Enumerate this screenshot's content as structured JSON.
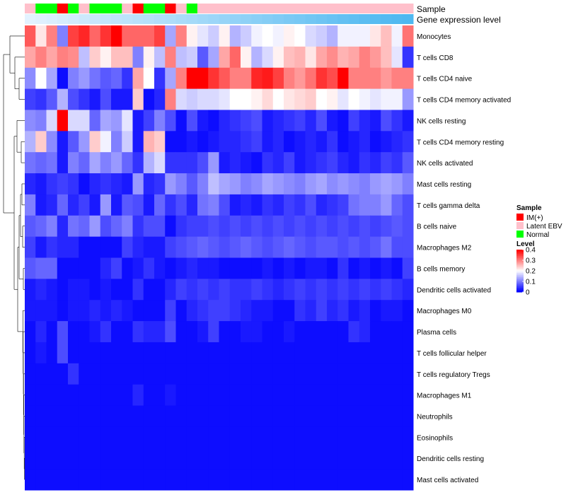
{
  "chart_data": {
    "type": "heatmap",
    "title": "",
    "annotation_tracks": [
      "Sample",
      "Gene expression level"
    ],
    "rows": [
      "Monocytes",
      "T cells CD8",
      "T cells CD4 naive",
      "T cells CD4 memory activated",
      "NK cells resting",
      "T cells CD4 memory resting",
      "NK cells activated",
      "Mast cells resting",
      "T cells gamma delta",
      "B cells naive",
      "Macrophages M2",
      "B cells memory",
      "Dendritic cells activated",
      "Macrophages M0",
      "Plasma cells",
      "T cells follicular helper",
      "T cells regulatory  Tregs",
      "Macrophages M1",
      "Neutrophils",
      "Eosinophils",
      "Dendritic cells resting",
      "Mast cells activated"
    ],
    "samples": [
      "Latent EBV",
      "Normal",
      "Normal",
      "IM(+)",
      "Normal",
      "Latent EBV",
      "Normal",
      "Normal",
      "Normal",
      "Latent EBV",
      "IM(+)",
      "Normal",
      "Normal",
      "IM(+)",
      "Latent EBV",
      "Normal",
      "Latent EBV",
      "Latent EBV",
      "Latent EBV",
      "Latent EBV",
      "Latent EBV",
      "Latent EBV",
      "Latent EBV",
      "Latent EBV",
      "Latent EBV",
      "Latent EBV",
      "Latent EBV",
      "Latent EBV",
      "Latent EBV",
      "Latent EBV",
      "Latent EBV",
      "Latent EBV",
      "Latent EBV",
      "Latent EBV",
      "Latent EBV",
      "Latent EBV"
    ],
    "gene_expression_level": [
      0.03,
      0.06,
      0.09,
      0.12,
      0.15,
      0.18,
      0.21,
      0.24,
      0.26,
      0.28,
      0.31,
      0.33,
      0.36,
      0.38,
      0.41,
      0.44,
      0.47,
      0.5,
      0.53,
      0.56,
      0.59,
      0.62,
      0.65,
      0.68,
      0.71,
      0.74,
      0.77,
      0.8,
      0.83,
      0.86,
      0.89,
      0.92,
      0.94,
      0.96,
      0.98,
      1.0
    ],
    "values": [
      [
        0.33,
        0.22,
        0.3,
        0.1,
        0.35,
        0.37,
        0.32,
        0.36,
        0.4,
        0.32,
        0.32,
        0.32,
        0.35,
        0.13,
        0.3,
        0.21,
        0.18,
        0.16,
        0.21,
        0.14,
        0.16,
        0.19,
        0.2,
        0.19,
        0.21,
        0.2,
        0.17,
        0.16,
        0.14,
        0.19,
        0.19,
        0.19,
        0.22,
        0.25,
        0.19,
        0.31
      ],
      [
        0.27,
        0.3,
        0.27,
        0.3,
        0.29,
        0.15,
        0.24,
        0.21,
        0.25,
        0.25,
        0.1,
        0.21,
        0.15,
        0.3,
        0.15,
        0.16,
        0.07,
        0.13,
        0.27,
        0.32,
        0.21,
        0.14,
        0.17,
        0.21,
        0.25,
        0.26,
        0.22,
        0.27,
        0.29,
        0.26,
        0.27,
        0.3,
        0.28,
        0.25,
        0.18,
        0.04
      ],
      [
        0.11,
        0.2,
        0.13,
        0.01,
        0.1,
        0.12,
        0.09,
        0.07,
        0.08,
        0.04,
        0.27,
        0.2,
        0.04,
        0.13,
        0.3,
        0.4,
        0.4,
        0.36,
        0.33,
        0.3,
        0.3,
        0.37,
        0.38,
        0.35,
        0.3,
        0.28,
        0.31,
        0.36,
        0.34,
        0.4,
        0.3,
        0.3,
        0.3,
        0.28,
        0.3,
        0.3
      ],
      [
        0.05,
        0.04,
        0.07,
        0.14,
        0.06,
        0.04,
        0.02,
        0.06,
        0.02,
        0.02,
        0.24,
        0.01,
        0.03,
        0.3,
        0.17,
        0.16,
        0.17,
        0.17,
        0.18,
        0.2,
        0.2,
        0.21,
        0.23,
        0.2,
        0.22,
        0.23,
        0.24,
        0.2,
        0.21,
        0.18,
        0.2,
        0.19,
        0.18,
        0.19,
        0.19,
        0.12
      ],
      [
        0.11,
        0.1,
        0.17,
        0.42,
        0.17,
        0.17,
        0.08,
        0.13,
        0.12,
        0.18,
        0.02,
        0.05,
        0.1,
        0.06,
        0.01,
        0.06,
        0.02,
        0.01,
        0.03,
        0.04,
        0.05,
        0.06,
        0.02,
        0.03,
        0.04,
        0.05,
        0.03,
        0.06,
        0.02,
        0.01,
        0.05,
        0.03,
        0.02,
        0.06,
        0.04,
        0.02
      ],
      [
        0.14,
        0.24,
        0.11,
        0.02,
        0.07,
        0.12,
        0.24,
        0.19,
        0.1,
        0.16,
        0.02,
        0.26,
        0.24,
        0.01,
        0.01,
        0.02,
        0.01,
        0.02,
        0.03,
        0.03,
        0.04,
        0.05,
        0.02,
        0.03,
        0.01,
        0.02,
        0.03,
        0.02,
        0.04,
        0.01,
        0.02,
        0.03,
        0.01,
        0.02,
        0.03,
        0.04
      ],
      [
        0.09,
        0.08,
        0.09,
        0.02,
        0.1,
        0.08,
        0.13,
        0.1,
        0.12,
        0.08,
        0.04,
        0.14,
        0.17,
        0.04,
        0.04,
        0.04,
        0.06,
        0.12,
        0.02,
        0.03,
        0.02,
        0.01,
        0.04,
        0.03,
        0.05,
        0.02,
        0.03,
        0.04,
        0.05,
        0.03,
        0.02,
        0.04,
        0.03,
        0.05,
        0.04,
        0.07
      ],
      [
        0.03,
        0.02,
        0.04,
        0.05,
        0.04,
        0.01,
        0.03,
        0.04,
        0.03,
        0.02,
        0.12,
        0.03,
        0.04,
        0.12,
        0.1,
        0.07,
        0.1,
        0.15,
        0.13,
        0.12,
        0.1,
        0.11,
        0.13,
        0.12,
        0.11,
        0.1,
        0.12,
        0.13,
        0.11,
        0.12,
        0.11,
        0.1,
        0.12,
        0.13,
        0.12,
        0.1
      ],
      [
        0.1,
        0.02,
        0.03,
        0.08,
        0.03,
        0.05,
        0.02,
        0.12,
        0.02,
        0.07,
        0.06,
        0.02,
        0.08,
        0.04,
        0.06,
        0.03,
        0.09,
        0.1,
        0.06,
        0.02,
        0.03,
        0.02,
        0.04,
        0.03,
        0.05,
        0.04,
        0.06,
        0.03,
        0.04,
        0.05,
        0.09,
        0.1,
        0.1,
        0.12,
        0.08,
        0.06
      ],
      [
        0.07,
        0.08,
        0.1,
        0.03,
        0.09,
        0.08,
        0.12,
        0.06,
        0.08,
        0.1,
        0.04,
        0.06,
        0.06,
        0.01,
        0.04,
        0.05,
        0.05,
        0.06,
        0.05,
        0.06,
        0.05,
        0.06,
        0.05,
        0.06,
        0.05,
        0.06,
        0.05,
        0.06,
        0.05,
        0.06,
        0.05,
        0.06,
        0.05,
        0.06,
        0.07,
        0.06
      ],
      [
        0.05,
        0.02,
        0.04,
        0.03,
        0.03,
        0.01,
        0.01,
        0.01,
        0.01,
        0.05,
        0.03,
        0.02,
        0.02,
        0.05,
        0.06,
        0.07,
        0.08,
        0.07,
        0.06,
        0.07,
        0.08,
        0.07,
        0.06,
        0.07,
        0.08,
        0.07,
        0.06,
        0.07,
        0.07,
        0.06,
        0.07,
        0.06,
        0.07,
        0.09,
        0.06,
        0.06
      ],
      [
        0.07,
        0.08,
        0.08,
        0.01,
        0.01,
        0.01,
        0.01,
        0.03,
        0.05,
        0.01,
        0.02,
        0.04,
        0.02,
        0.01,
        0.02,
        0.03,
        0.02,
        0.02,
        0.01,
        0.01,
        0.01,
        0.01,
        0.02,
        0.01,
        0.02,
        0.01,
        0.02,
        0.02,
        0.01,
        0.04,
        0.01,
        0.02,
        0.01,
        0.02,
        0.01,
        0.05
      ],
      [
        0.02,
        0.03,
        0.02,
        0.01,
        0.02,
        0.02,
        0.01,
        0.02,
        0.01,
        0.01,
        0.04,
        0.01,
        0.01,
        0.03,
        0.05,
        0.04,
        0.05,
        0.04,
        0.05,
        0.04,
        0.04,
        0.05,
        0.04,
        0.03,
        0.04,
        0.05,
        0.04,
        0.05,
        0.04,
        0.05,
        0.04,
        0.05,
        0.04,
        0.05,
        0.04,
        0.03
      ],
      [
        0.02,
        0.02,
        0.02,
        0.01,
        0.02,
        0.02,
        0.03,
        0.02,
        0.03,
        0.02,
        0.01,
        0.01,
        0.01,
        0.05,
        0.01,
        0.03,
        0.04,
        0.05,
        0.05,
        0.04,
        0.03,
        0.02,
        0.02,
        0.01,
        0.01,
        0.04,
        0.03,
        0.05,
        0.03,
        0.04,
        0.02,
        0.03,
        0.01,
        0.02,
        0.02,
        0.01
      ],
      [
        0.01,
        0.03,
        0.01,
        0.06,
        0.01,
        0.01,
        0.02,
        0.04,
        0.01,
        0.01,
        0.04,
        0.03,
        0.03,
        0.06,
        0.01,
        0.01,
        0.02,
        0.05,
        0.01,
        0.01,
        0.02,
        0.02,
        0.01,
        0.01,
        0.02,
        0.01,
        0.01,
        0.01,
        0.01,
        0.01,
        0.04,
        0.03,
        0.01,
        0.01,
        0.01,
        0.01
      ],
      [
        0.01,
        0.02,
        0.01,
        0.06,
        0.01,
        0.01,
        0.01,
        0.01,
        0.01,
        0.01,
        0.01,
        0.01,
        0.01,
        0.01,
        0.01,
        0.01,
        0.01,
        0.01,
        0.01,
        0.01,
        0.01,
        0.01,
        0.01,
        0.01,
        0.01,
        0.01,
        0.01,
        0.01,
        0.01,
        0.01,
        0.01,
        0.01,
        0.01,
        0.01,
        0.01,
        0.01
      ],
      [
        0.01,
        0.01,
        0.01,
        0.01,
        0.04,
        0.01,
        0.01,
        0.01,
        0.01,
        0.01,
        0.01,
        0.01,
        0.01,
        0.01,
        0.01,
        0.01,
        0.01,
        0.01,
        0.01,
        0.01,
        0.01,
        0.01,
        0.01,
        0.01,
        0.01,
        0.01,
        0.01,
        0.01,
        0.01,
        0.01,
        0.01,
        0.01,
        0.01,
        0.01,
        0.01,
        0.01
      ],
      [
        0.01,
        0.01,
        0.01,
        0.01,
        0.01,
        0.01,
        0.01,
        0.01,
        0.01,
        0.01,
        0.03,
        0.01,
        0.01,
        0.02,
        0.01,
        0.01,
        0.01,
        0.01,
        0.01,
        0.01,
        0.01,
        0.01,
        0.01,
        0.01,
        0.01,
        0.01,
        0.01,
        0.01,
        0.01,
        0.01,
        0.01,
        0.01,
        0.01,
        0.01,
        0.01,
        0.01
      ],
      [
        0.01,
        0.01,
        0.01,
        0.01,
        0.01,
        0.01,
        0.01,
        0.01,
        0.01,
        0.01,
        0.01,
        0.01,
        0.01,
        0.01,
        0.01,
        0.01,
        0.01,
        0.01,
        0.01,
        0.01,
        0.01,
        0.01,
        0.01,
        0.01,
        0.01,
        0.01,
        0.01,
        0.01,
        0.01,
        0.01,
        0.01,
        0.01,
        0.01,
        0.01,
        0.01,
        0.01
      ],
      [
        0.01,
        0.01,
        0.01,
        0.01,
        0.01,
        0.01,
        0.01,
        0.01,
        0.01,
        0.01,
        0.01,
        0.01,
        0.01,
        0.01,
        0.01,
        0.01,
        0.01,
        0.01,
        0.01,
        0.01,
        0.01,
        0.01,
        0.01,
        0.01,
        0.01,
        0.01,
        0.01,
        0.01,
        0.01,
        0.01,
        0.01,
        0.01,
        0.01,
        0.01,
        0.01,
        0.01
      ],
      [
        0.01,
        0.01,
        0.01,
        0.01,
        0.01,
        0.01,
        0.01,
        0.01,
        0.01,
        0.01,
        0.01,
        0.01,
        0.01,
        0.01,
        0.01,
        0.01,
        0.01,
        0.01,
        0.01,
        0.01,
        0.01,
        0.01,
        0.01,
        0.01,
        0.01,
        0.01,
        0.01,
        0.01,
        0.01,
        0.01,
        0.01,
        0.01,
        0.01,
        0.01,
        0.01,
        0.01
      ],
      [
        0.01,
        0.01,
        0.01,
        0.01,
        0.01,
        0.01,
        0.01,
        0.01,
        0.01,
        0.01,
        0.01,
        0.01,
        0.01,
        0.01,
        0.01,
        0.01,
        0.01,
        0.01,
        0.01,
        0.01,
        0.01,
        0.01,
        0.01,
        0.01,
        0.01,
        0.01,
        0.01,
        0.01,
        0.01,
        0.01,
        0.01,
        0.01,
        0.01,
        0.01,
        0.01,
        0.01
      ]
    ],
    "color_scale": {
      "domain": [
        0,
        0.2,
        0.4
      ],
      "colors": [
        "#0000ff",
        "#ffffff",
        "#ff0000"
      ]
    },
    "legend": {
      "sample_title": "Sample",
      "sample_entries": [
        {
          "label": "IM(+)",
          "color": "#ff0000"
        },
        {
          "label": "Latent EBV",
          "color": "#ffc0cb"
        },
        {
          "label": "Normal",
          "color": "#00ff00"
        }
      ],
      "level_title": "Level",
      "level_ticks": [
        "0.4",
        "0.3",
        "0.2",
        "0.1",
        "0"
      ],
      "placement": "right"
    },
    "gene_expression_colors": [
      "#e8f4ff",
      "#4fb8f0"
    ]
  }
}
